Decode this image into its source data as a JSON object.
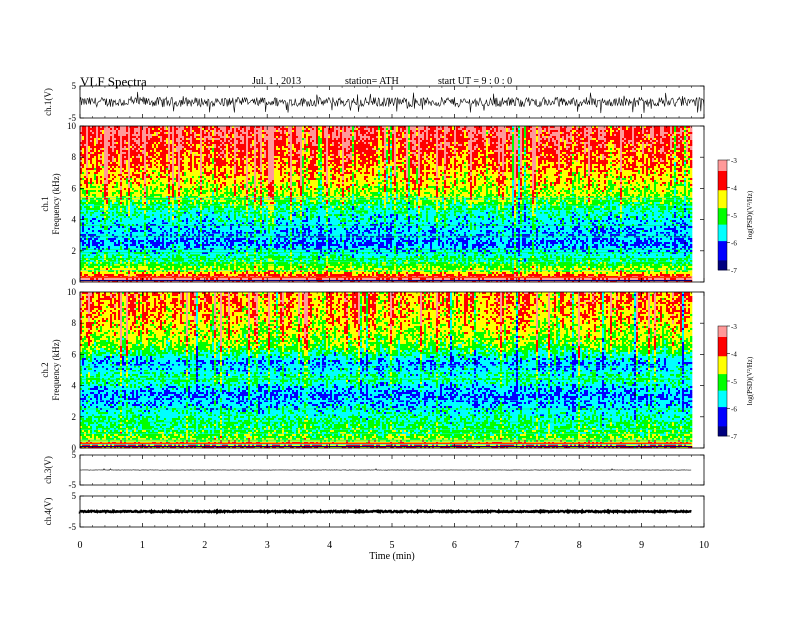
{
  "header": {
    "title": "VLF  Spectra",
    "date": "Jul.  1  , 2013",
    "station": "station= ATH",
    "start": "start  UT  =    9  : 0  : 0"
  },
  "colors": {
    "spectrum_scale": [
      "#00007f",
      "#0000ff",
      "#00ffff",
      "#00ff00",
      "#ffff00",
      "#ff0000",
      "#ff9999"
    ],
    "waveform": "#000000"
  },
  "chart_data": [
    {
      "type": "line",
      "panel": "ch1 waveform",
      "ylabel": "ch.1(V)",
      "ylim": [
        -5,
        5
      ],
      "yticks": [
        "5",
        "-5"
      ],
      "xlim": [
        0,
        10
      ],
      "description_values": {
        "baseline_V": 0.0,
        "typical_amplitude_V": 1.5
      }
    },
    {
      "type": "heatmap",
      "panel": "ch1 spectrogram",
      "ylabel": "ch.1\nFrequency (kHz)",
      "ylabel_line1": "ch.1",
      "ylabel_line2": "Frequency  (kHz)",
      "ylim": [
        0,
        10
      ],
      "yticks": [
        "0",
        "2",
        "4",
        "6",
        "8",
        "10"
      ],
      "xlim": [
        0,
        9.8
      ],
      "colorbar": {
        "label": "log(PSD)(V²/Hz)",
        "range": [
          -7,
          -3
        ],
        "ticks": [
          "-3",
          "-4",
          "-5",
          "-6",
          "-7"
        ]
      },
      "band_profile_logPSD": [
        {
          "freq_kHz": 0.25,
          "logPSD": -3.3
        },
        {
          "freq_kHz": 0.75,
          "logPSD": -4.8
        },
        {
          "freq_kHz": 1.5,
          "logPSD": -5.4
        },
        {
          "freq_kHz": 2.5,
          "logPSD": -6.2
        },
        {
          "freq_kHz": 3.5,
          "logPSD": -5.9
        },
        {
          "freq_kHz": 4.5,
          "logPSD": -5.6
        },
        {
          "freq_kHz": 5.5,
          "logPSD": -4.9
        },
        {
          "freq_kHz": 6.5,
          "logPSD": -4.5
        },
        {
          "freq_kHz": 7.5,
          "logPSD": -4.2
        },
        {
          "freq_kHz": 8.5,
          "logPSD": -3.9
        },
        {
          "freq_kHz": 9.5,
          "logPSD": -3.6
        }
      ]
    },
    {
      "type": "heatmap",
      "panel": "ch2 spectrogram",
      "ylabel_line1": "ch.2",
      "ylabel_line2": "Frequency  (kHz)",
      "ylim": [
        0,
        10
      ],
      "yticks": [
        "0",
        "2",
        "4",
        "6",
        "8",
        "10"
      ],
      "xlim": [
        0,
        9.8
      ],
      "colorbar": {
        "label": "log(PSD)(V²/Hz)",
        "range": [
          -7,
          -3
        ],
        "ticks": [
          "-3",
          "-4",
          "-5",
          "-6",
          "-7"
        ]
      },
      "band_profile_logPSD": [
        {
          "freq_kHz": 0.25,
          "logPSD": -4.0
        },
        {
          "freq_kHz": 0.75,
          "logPSD": -4.9
        },
        {
          "freq_kHz": 1.5,
          "logPSD": -5.2
        },
        {
          "freq_kHz": 2.5,
          "logPSD": -5.6
        },
        {
          "freq_kHz": 3.5,
          "logPSD": -6.0
        },
        {
          "freq_kHz": 4.5,
          "logPSD": -5.3
        },
        {
          "freq_kHz": 5.5,
          "logPSD": -5.9
        },
        {
          "freq_kHz": 6.5,
          "logPSD": -4.9
        },
        {
          "freq_kHz": 7.5,
          "logPSD": -4.5
        },
        {
          "freq_kHz": 8.5,
          "logPSD": -4.2
        },
        {
          "freq_kHz": 9.5,
          "logPSD": -4.0
        }
      ]
    },
    {
      "type": "line",
      "panel": "ch3 waveform",
      "ylabel": "ch.3(V)",
      "ylim": [
        -5,
        5
      ],
      "yticks": [
        "5",
        "-5"
      ],
      "xlim": [
        0,
        9.8
      ],
      "description_values": {
        "baseline_V": 0.0,
        "typical_amplitude_V": 0.05
      }
    },
    {
      "type": "line",
      "panel": "ch4 waveform",
      "ylabel": "ch.4(V)",
      "ylim": [
        -5,
        5
      ],
      "yticks": [
        "5",
        "-5"
      ],
      "xlim": [
        0,
        9.8
      ],
      "description_values": {
        "baseline_V": 0.0,
        "typical_amplitude_V": 0.2
      }
    }
  ],
  "xaxis": {
    "label": "Time  (min)",
    "range": [
      0,
      10
    ],
    "ticks": [
      "0",
      "1",
      "2",
      "3",
      "4",
      "5",
      "6",
      "7",
      "8",
      "9",
      "10"
    ]
  }
}
